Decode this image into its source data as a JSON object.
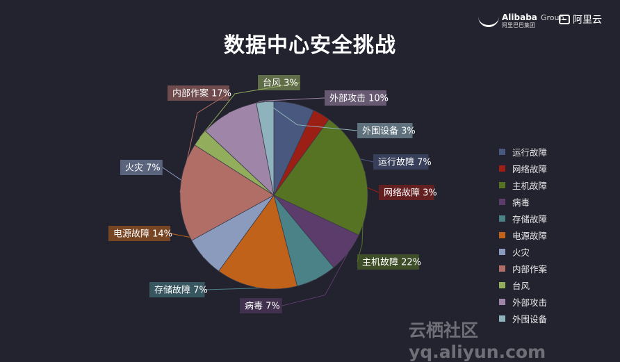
{
  "header": {
    "brand_alibaba": "Alibaba",
    "brand_alibaba_suffix": "Group",
    "brand_alibaba_cn": "阿里巴巴集团",
    "brand_aliyun": "阿里云"
  },
  "watermark": "云栖社区 yq.aliyun.com",
  "chart_data": {
    "type": "pie",
    "title": "数据中心安全挑战",
    "legend_position": "right",
    "slices": [
      {
        "name": "运行故障",
        "value": 7,
        "label": "运行故障 7%",
        "color": "#48587e"
      },
      {
        "name": "网络故障",
        "value": 3,
        "label": "网络故障 3%",
        "color": "#9b1f15"
      },
      {
        "name": "主机故障",
        "value": 22,
        "label": "主机故障 22%",
        "color": "#567223"
      },
      {
        "name": "病毒",
        "value": 7,
        "label": "病毒 7%",
        "color": "#5c3c6a"
      },
      {
        "name": "存储故障",
        "value": 7,
        "label": "存储故障 7%",
        "color": "#4a8287"
      },
      {
        "name": "电源故障",
        "value": 14,
        "label": "电源故障 14%",
        "color": "#c0621a"
      },
      {
        "name": "火灾",
        "value": 7,
        "label": "火灾 7%",
        "color": "#8a9bbd"
      },
      {
        "name": "内部作案",
        "value": 17,
        "label": "内部作案 17%",
        "color": "#b06e66"
      },
      {
        "name": "台风",
        "value": 3,
        "label": "台风 3%",
        "color": "#92ad5c"
      },
      {
        "name": "外部攻击",
        "value": 10,
        "label": "外部攻击 10%",
        "color": "#9f86a8"
      },
      {
        "name": "外围设备",
        "value": 3,
        "label": "外围设备 3%",
        "color": "#8fb3bd"
      }
    ]
  }
}
